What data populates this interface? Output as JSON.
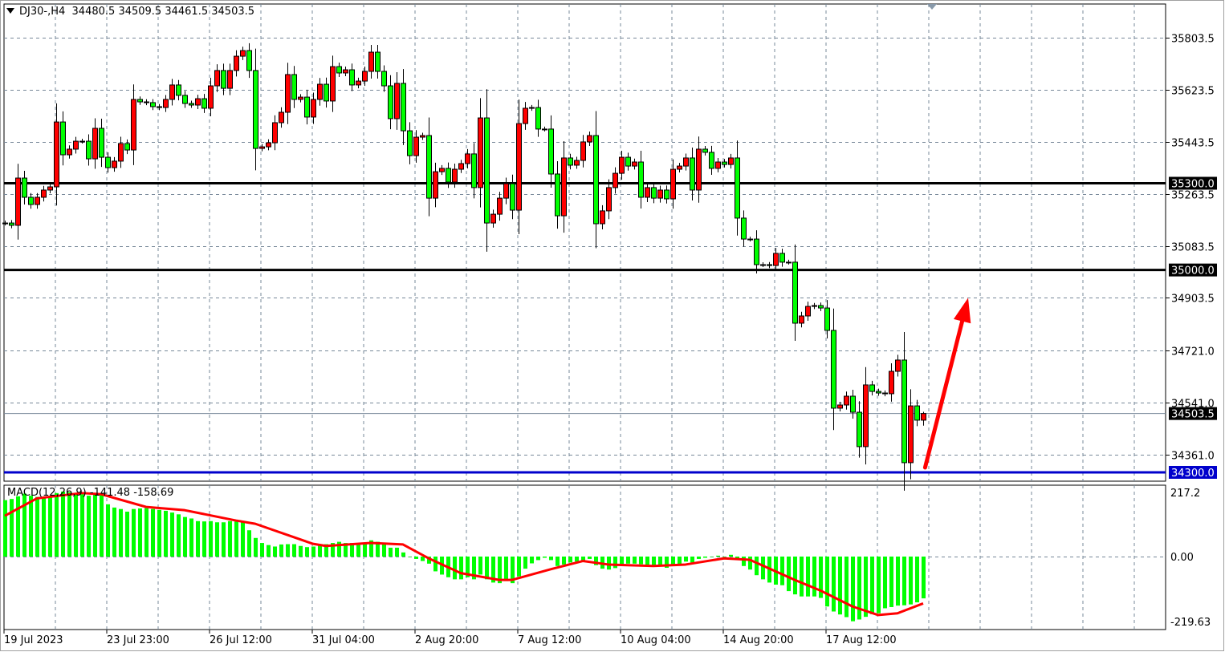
{
  "header": {
    "symbol": "DJ30-",
    "timeframe": "H4",
    "open": "34480.5",
    "high": "34509.5",
    "low": "34461.5",
    "close": "34503.5"
  },
  "macd_title": {
    "name": "MACD(12,26,9)",
    "main": "-141.48",
    "signal": "-158.69"
  },
  "colors": {
    "bull": "#ff0000",
    "bear": "#00ff00",
    "support_resistance": "#000000",
    "support_low": "#0000cc",
    "histogram": "#00ff00",
    "signal": "#ff0000",
    "arrow": "#ff0000",
    "grid": "#778899"
  },
  "chart_data": [
    {
      "type": "candlestick",
      "title": "DJ30-,H4",
      "price_ticks": [
        "35803.5",
        "35623.5",
        "35443.5",
        "35263.5",
        "35083.5",
        "34903.5",
        "34721.0",
        "34541.0",
        "34361.0"
      ],
      "x_tick_labels": [
        {
          "bar": 1,
          "label": "19 Jul 2023"
        },
        {
          "bar": 17,
          "label": "23 Jul 23:00"
        },
        {
          "bar": 33,
          "label": "26 Jul 12:00"
        },
        {
          "bar": 49,
          "label": "31 Jul 04:00"
        },
        {
          "bar": 65,
          "label": "2 Aug 20:00"
        },
        {
          "bar": 81,
          "label": "7 Aug 12:00"
        },
        {
          "bar": 97,
          "label": "10 Aug 04:00"
        },
        {
          "bar": 113,
          "label": "14 Aug 20:00"
        },
        {
          "bar": 129,
          "label": "17 Aug 12:00"
        }
      ],
      "ylim": [
        34280,
        35890
      ],
      "grid": true,
      "close": [
        35162.5,
        35154.5,
        35318,
        35251.5,
        35226.5,
        35251.5,
        35276.5,
        35287.5,
        35512,
        35398.5,
        35418,
        35445.5,
        35445.5,
        35384.5,
        35490,
        35390,
        35354,
        35376.5,
        35437.5,
        35415,
        35590,
        35581.5,
        35579,
        35565,
        35562,
        35590,
        35640,
        35604,
        35576,
        35570.5,
        35592.5,
        35559.5,
        35637,
        35690,
        35628.5,
        35690,
        35739.5,
        35759,
        35690,
        35420.5,
        35426,
        35440,
        35509.5,
        35545.5,
        35676,
        35590,
        35598,
        35529,
        35590,
        35642.5,
        35584.5,
        35703.5,
        35681.5,
        35692.5,
        35640,
        35653.5,
        35687,
        35753.5,
        35687,
        35637,
        35523.5,
        35645.5,
        35481.5,
        35395.5,
        35459.5,
        35465,
        35248.5,
        35340,
        35351.5,
        35304,
        35348.5,
        35368,
        35401.5,
        35285,
        35526,
        35162.5,
        35193,
        35248.5,
        35298.5,
        35207,
        35506.5,
        35559.5,
        35562,
        35487.5,
        35487.5,
        35332,
        35187.5,
        35387.5,
        35362.5,
        35379,
        35443,
        35465,
        35160,
        35204.5,
        35285,
        35334.5,
        35390,
        35359.5,
        35373.5,
        35251.5,
        35285,
        35248.5,
        35276.5,
        35246,
        35348.5,
        35359.5,
        35387.5,
        35276.5,
        35418,
        35407,
        35351.5,
        35373.5,
        35365,
        35387.5,
        35179.5,
        35107,
        35107,
        35018.5,
        35018.5,
        35015.5,
        35057.5,
        35027,
        35027,
        34816,
        34841,
        34874,
        34877,
        34868.5,
        34791,
        34522,
        34533,
        34563.5,
        34508,
        34389,
        34602.5,
        34580,
        34574.5,
        34572,
        34649.5,
        34688.5,
        34333.5,
        34530,
        34480.5,
        34503.5
      ],
      "last_bar": {
        "open": 34480.5,
        "high": 34509.5,
        "low": 34461.5,
        "close": 34503.5
      },
      "horizontal_lines": [
        {
          "price": 35300.0,
          "label": "35300.0",
          "color": "#000000"
        },
        {
          "price": 35000.0,
          "label": "35000.0",
          "color": "#000000"
        },
        {
          "price": 34300.0,
          "label": "34300.0",
          "color": "#0000cc"
        }
      ],
      "bid_line": {
        "price": 34503.5,
        "label": "34503.5"
      },
      "annotation_arrow": {
        "from_price": 34300,
        "from_bar": 144.3,
        "to_price": 34903.5,
        "to_bar": 151,
        "direction": "up",
        "color": "#ff0000"
      }
    },
    {
      "type": "bar+line",
      "title": "MACD(12,26,9)",
      "y_ticks": [
        "217.2",
        "0.00",
        "-219.63"
      ],
      "ylim": [
        -219.63,
        217.2
      ],
      "histogram": [
        191,
        195,
        204,
        213,
        206,
        202,
        197,
        206,
        215,
        220,
        218,
        215,
        211,
        206,
        211,
        209,
        177,
        166,
        161,
        152,
        161,
        163,
        164,
        161,
        158,
        155,
        149,
        143,
        134,
        129,
        120,
        119,
        120,
        116,
        116,
        120,
        119,
        116,
        89,
        63,
        46,
        39,
        34,
        41,
        42,
        42,
        36,
        32,
        34,
        39,
        42,
        46,
        50,
        46,
        46,
        46,
        46,
        55,
        50,
        43,
        30,
        30,
        14,
        0,
        -8,
        -15,
        -24,
        -50,
        -61,
        -70,
        -77,
        -77,
        -70,
        -77,
        -61,
        -77,
        -88,
        -90,
        -83,
        -90,
        -67,
        -41,
        -23,
        -12,
        -4,
        -12,
        -32,
        -27,
        -20,
        -17,
        -15,
        -8,
        -29,
        -41,
        -44,
        -39,
        -26,
        -24,
        -24,
        -26,
        -29,
        -32,
        -29,
        -38,
        -32,
        -26,
        -17,
        -20,
        -8,
        -4,
        -1,
        3,
        0,
        6,
        -11,
        -32,
        -44,
        -63,
        -77,
        -88,
        -95,
        -97,
        -117,
        -128,
        -135,
        -135,
        -135,
        -140,
        -169,
        -186,
        -196,
        -205,
        -219,
        -213,
        -204,
        -195,
        -192,
        -175,
        -171,
        -166,
        -165,
        -162,
        -155,
        -141.48
      ],
      "signal_points": [
        [
          1,
          138
        ],
        [
          6,
          197
        ],
        [
          13,
          215
        ],
        [
          16,
          211
        ],
        [
          23,
          168
        ],
        [
          29,
          157
        ],
        [
          37,
          122
        ],
        [
          40,
          111
        ],
        [
          49,
          43
        ],
        [
          51,
          36
        ],
        [
          58,
          46
        ],
        [
          63,
          41
        ],
        [
          67,
          -6
        ],
        [
          72,
          -56
        ],
        [
          78,
          -79
        ],
        [
          80,
          -79
        ],
        [
          86,
          -43
        ],
        [
          91,
          -15
        ],
        [
          95,
          -27
        ],
        [
          102,
          -32
        ],
        [
          107,
          -27
        ],
        [
          113,
          -6
        ],
        [
          117,
          -11
        ],
        [
          124,
          -79
        ],
        [
          128,
          -115
        ],
        [
          133,
          -169
        ],
        [
          137,
          -198
        ],
        [
          140,
          -192
        ],
        [
          144,
          -158.69
        ]
      ]
    }
  ]
}
